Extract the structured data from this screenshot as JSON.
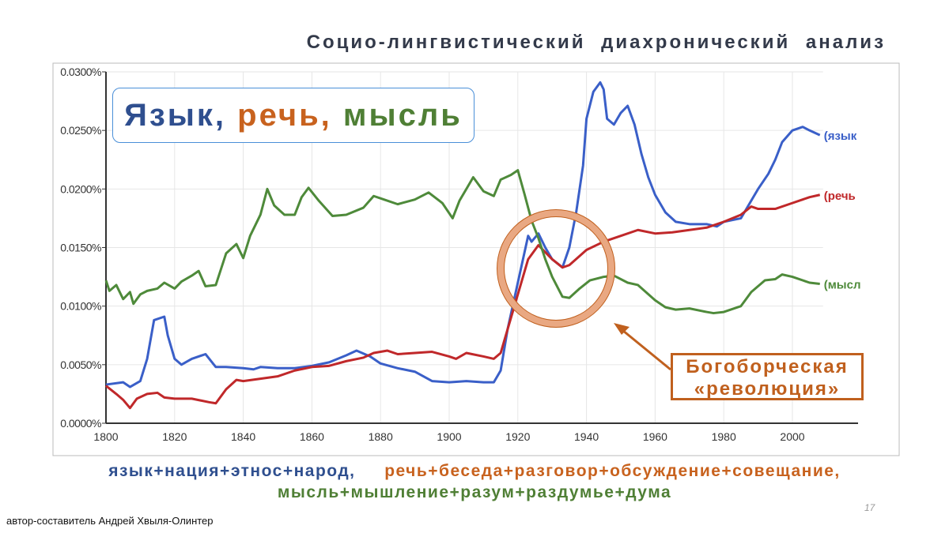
{
  "slide": {
    "title": "Социо-лингвистический диахронический анализ",
    "page_number": "17",
    "author": "автор-составитель Андрей Хвыля-Олинтер"
  },
  "title_box": {
    "word1": "Язык",
    "sep1": ", ",
    "word2": "речь",
    "sep2": ", ",
    "word3": "мысль"
  },
  "annotation": {
    "line1": "Богоборческая",
    "line2": "«революция»"
  },
  "legend": {
    "blue": "язык+нация+этнос+народ,",
    "orange": "речь+беседа+разговор+обсуждение+совещание,",
    "green": "мысль+мышление+разум+раздумье+дума"
  },
  "colors": {
    "blue": "#3a5fc8",
    "red": "#c0282a",
    "green": "#4e8a3a",
    "title_blue": "#2f4f8f",
    "title_orange": "#c8621e",
    "title_green": "#4f7f35",
    "circle": "#e9a882",
    "annotation": "#c0601e"
  },
  "chart_data": {
    "type": "line",
    "xlim": [
      1800,
      2008
    ],
    "ylim": [
      0,
      0.03
    ],
    "grid": true,
    "x_ticks": [
      "1800",
      "1820",
      "1840",
      "1860",
      "1880",
      "1900",
      "1920",
      "1940",
      "1960",
      "1980",
      "2000"
    ],
    "y_ticks": [
      "0.0000%",
      "0.0050%",
      "0.0100%",
      "0.0150%",
      "0.0200%",
      "0.0250%",
      "0.0300%"
    ],
    "annotation_circle_center": [
      1926,
      0.0132
    ],
    "series": [
      {
        "name": "(язык",
        "color": "#3a5fc8",
        "points": [
          [
            1800,
            0.0033
          ],
          [
            1805,
            0.0035
          ],
          [
            1807,
            0.0031
          ],
          [
            1810,
            0.0036
          ],
          [
            1812,
            0.0055
          ],
          [
            1814,
            0.0088
          ],
          [
            1817,
            0.0091
          ],
          [
            1818,
            0.0075
          ],
          [
            1820,
            0.0055
          ],
          [
            1822,
            0.005
          ],
          [
            1825,
            0.0055
          ],
          [
            1829,
            0.0059
          ],
          [
            1832,
            0.0048
          ],
          [
            1835,
            0.0048
          ],
          [
            1840,
            0.0047
          ],
          [
            1843,
            0.0046
          ],
          [
            1845,
            0.0048
          ],
          [
            1850,
            0.0047
          ],
          [
            1855,
            0.0047
          ],
          [
            1860,
            0.0049
          ],
          [
            1865,
            0.0052
          ],
          [
            1870,
            0.0058
          ],
          [
            1873,
            0.0062
          ],
          [
            1877,
            0.0057
          ],
          [
            1880,
            0.0051
          ],
          [
            1885,
            0.0047
          ],
          [
            1890,
            0.0044
          ],
          [
            1895,
            0.0036
          ],
          [
            1900,
            0.0035
          ],
          [
            1905,
            0.0036
          ],
          [
            1910,
            0.0035
          ],
          [
            1913,
            0.0035
          ],
          [
            1915,
            0.0045
          ],
          [
            1917,
            0.008
          ],
          [
            1920,
            0.012
          ],
          [
            1923,
            0.016
          ],
          [
            1924,
            0.0155
          ],
          [
            1926,
            0.0162
          ],
          [
            1928,
            0.015
          ],
          [
            1930,
            0.014
          ],
          [
            1933,
            0.0133
          ],
          [
            1935,
            0.015
          ],
          [
            1937,
            0.018
          ],
          [
            1939,
            0.022
          ],
          [
            1940,
            0.026
          ],
          [
            1942,
            0.0283
          ],
          [
            1944,
            0.0291
          ],
          [
            1945,
            0.0285
          ],
          [
            1946,
            0.026
          ],
          [
            1948,
            0.0255
          ],
          [
            1950,
            0.0265
          ],
          [
            1952,
            0.0271
          ],
          [
            1954,
            0.0255
          ],
          [
            1956,
            0.023
          ],
          [
            1958,
            0.021
          ],
          [
            1960,
            0.0195
          ],
          [
            1963,
            0.018
          ],
          [
            1966,
            0.0172
          ],
          [
            1970,
            0.017
          ],
          [
            1975,
            0.017
          ],
          [
            1978,
            0.0168
          ],
          [
            1980,
            0.0172
          ],
          [
            1985,
            0.0175
          ],
          [
            1988,
            0.019
          ],
          [
            1990,
            0.02
          ],
          [
            1993,
            0.0213
          ],
          [
            1995,
            0.0225
          ],
          [
            1997,
            0.024
          ],
          [
            2000,
            0.025
          ],
          [
            2003,
            0.0253
          ],
          [
            2005,
            0.025
          ],
          [
            2008,
            0.0246
          ]
        ]
      },
      {
        "name": "(речь",
        "color": "#c0282a",
        "points": [
          [
            1800,
            0.0032
          ],
          [
            1803,
            0.0025
          ],
          [
            1805,
            0.002
          ],
          [
            1807,
            0.0013
          ],
          [
            1809,
            0.0021
          ],
          [
            1812,
            0.0025
          ],
          [
            1815,
            0.0026
          ],
          [
            1817,
            0.0022
          ],
          [
            1820,
            0.0021
          ],
          [
            1825,
            0.0021
          ],
          [
            1830,
            0.0018
          ],
          [
            1832,
            0.0017
          ],
          [
            1835,
            0.0029
          ],
          [
            1838,
            0.0037
          ],
          [
            1840,
            0.0036
          ],
          [
            1845,
            0.0038
          ],
          [
            1850,
            0.004
          ],
          [
            1855,
            0.0045
          ],
          [
            1860,
            0.0048
          ],
          [
            1865,
            0.0049
          ],
          [
            1870,
            0.0053
          ],
          [
            1875,
            0.0056
          ],
          [
            1878,
            0.006
          ],
          [
            1882,
            0.0062
          ],
          [
            1885,
            0.0059
          ],
          [
            1890,
            0.006
          ],
          [
            1895,
            0.0061
          ],
          [
            1900,
            0.0057
          ],
          [
            1902,
            0.0055
          ],
          [
            1905,
            0.006
          ],
          [
            1910,
            0.0057
          ],
          [
            1913,
            0.0055
          ],
          [
            1915,
            0.006
          ],
          [
            1917,
            0.008
          ],
          [
            1920,
            0.011
          ],
          [
            1923,
            0.014
          ],
          [
            1926,
            0.0152
          ],
          [
            1930,
            0.014
          ],
          [
            1933,
            0.0133
          ],
          [
            1935,
            0.0135
          ],
          [
            1940,
            0.0148
          ],
          [
            1945,
            0.0155
          ],
          [
            1950,
            0.016
          ],
          [
            1955,
            0.0165
          ],
          [
            1960,
            0.0162
          ],
          [
            1965,
            0.0163
          ],
          [
            1970,
            0.0165
          ],
          [
            1975,
            0.0167
          ],
          [
            1980,
            0.0172
          ],
          [
            1985,
            0.0178
          ],
          [
            1988,
            0.0185
          ],
          [
            1990,
            0.0183
          ],
          [
            1995,
            0.0183
          ],
          [
            2000,
            0.0188
          ],
          [
            2005,
            0.0193
          ],
          [
            2008,
            0.0195
          ]
        ]
      },
      {
        "name": "(мысл",
        "color": "#4e8a3a",
        "points": [
          [
            1800,
            0.0122
          ],
          [
            1801,
            0.0113
          ],
          [
            1803,
            0.0118
          ],
          [
            1805,
            0.0106
          ],
          [
            1807,
            0.0112
          ],
          [
            1808,
            0.0102
          ],
          [
            1810,
            0.011
          ],
          [
            1812,
            0.0113
          ],
          [
            1815,
            0.0115
          ],
          [
            1817,
            0.012
          ],
          [
            1820,
            0.0115
          ],
          [
            1822,
            0.0121
          ],
          [
            1825,
            0.0126
          ],
          [
            1827,
            0.013
          ],
          [
            1829,
            0.0117
          ],
          [
            1832,
            0.0118
          ],
          [
            1835,
            0.0145
          ],
          [
            1838,
            0.0153
          ],
          [
            1840,
            0.0141
          ],
          [
            1842,
            0.016
          ],
          [
            1845,
            0.0178
          ],
          [
            1847,
            0.02
          ],
          [
            1849,
            0.0186
          ],
          [
            1852,
            0.0178
          ],
          [
            1855,
            0.0178
          ],
          [
            1857,
            0.0193
          ],
          [
            1859,
            0.0201
          ],
          [
            1862,
            0.019
          ],
          [
            1866,
            0.0177
          ],
          [
            1870,
            0.0178
          ],
          [
            1875,
            0.0184
          ],
          [
            1878,
            0.0194
          ],
          [
            1881,
            0.0191
          ],
          [
            1885,
            0.0187
          ],
          [
            1890,
            0.0191
          ],
          [
            1894,
            0.0197
          ],
          [
            1898,
            0.0188
          ],
          [
            1901,
            0.0175
          ],
          [
            1903,
            0.019
          ],
          [
            1905,
            0.02
          ],
          [
            1907,
            0.021
          ],
          [
            1910,
            0.0198
          ],
          [
            1913,
            0.0194
          ],
          [
            1915,
            0.0208
          ],
          [
            1918,
            0.0212
          ],
          [
            1920,
            0.0216
          ],
          [
            1922,
            0.0195
          ],
          [
            1924,
            0.0173
          ],
          [
            1926,
            0.0158
          ],
          [
            1928,
            0.014
          ],
          [
            1930,
            0.0125
          ],
          [
            1933,
            0.0108
          ],
          [
            1935,
            0.0107
          ],
          [
            1938,
            0.0115
          ],
          [
            1941,
            0.0122
          ],
          [
            1945,
            0.0125
          ],
          [
            1948,
            0.0126
          ],
          [
            1952,
            0.012
          ],
          [
            1955,
            0.0118
          ],
          [
            1960,
            0.0105
          ],
          [
            1963,
            0.0099
          ],
          [
            1966,
            0.0097
          ],
          [
            1970,
            0.0098
          ],
          [
            1975,
            0.0095
          ],
          [
            1977,
            0.0094
          ],
          [
            1980,
            0.0095
          ],
          [
            1985,
            0.01
          ],
          [
            1988,
            0.0112
          ],
          [
            1992,
            0.0122
          ],
          [
            1995,
            0.0123
          ],
          [
            1997,
            0.0127
          ],
          [
            2000,
            0.0125
          ],
          [
            2005,
            0.012
          ],
          [
            2008,
            0.0119
          ]
        ]
      }
    ]
  }
}
